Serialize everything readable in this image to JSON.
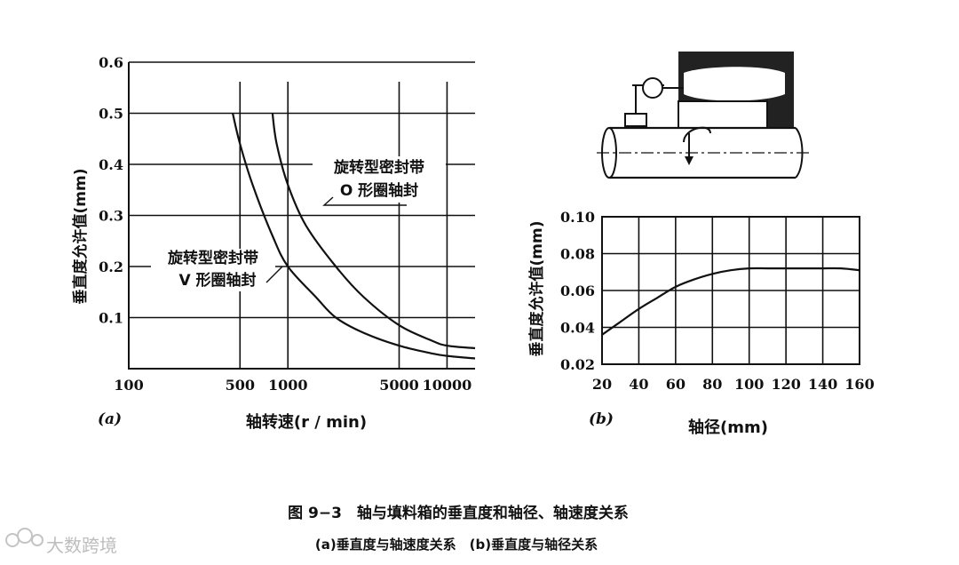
{
  "figure": {
    "caption": "图 9−3　轴与填料箱的垂直度和轴径、轴速度关系",
    "subcaption": "(a)垂直度与轴速度关系　(b)垂直度与轴径关系"
  },
  "watermark": "大数跨境",
  "chart_data": [
    {
      "panel": "(a)",
      "type": "line",
      "ylabel": "垂直度允许值(mm)",
      "xlabel": "轴转速(r / min)",
      "x_scale": "log",
      "x_ticks": [
        100,
        500,
        1000,
        5000,
        10000
      ],
      "x_tick_labels": [
        "100",
        "500",
        "1000",
        "5000",
        "10000"
      ],
      "y_ticks": [
        0.1,
        0.2,
        0.3,
        0.4,
        0.5,
        0.6
      ],
      "y_tick_labels": [
        "0.1",
        "0.2",
        "0.3",
        "0.4",
        "0.5",
        "0.6"
      ],
      "xlim": [
        100,
        15000
      ],
      "ylim": [
        0,
        0.6
      ],
      "grid": true,
      "series": [
        {
          "name": "旋转型密封带 V 形圈轴封",
          "label_lines": [
            "旋转型密封带",
            "V 形圈轴封"
          ],
          "x": [
            450,
            500,
            600,
            800,
            1000,
            1500,
            2000,
            3000,
            5000,
            8000,
            10000,
            15000
          ],
          "y": [
            0.5,
            0.44,
            0.36,
            0.26,
            0.2,
            0.14,
            0.1,
            0.07,
            0.045,
            0.03,
            0.025,
            0.02
          ]
        },
        {
          "name": "旋转型密封带 O 形圈轴封",
          "label_lines": [
            "旋转型密封带",
            "O 形圈轴封"
          ],
          "x": [
            800,
            850,
            1000,
            1300,
            2000,
            3000,
            5000,
            8000,
            10000,
            15000
          ],
          "y": [
            0.5,
            0.44,
            0.36,
            0.28,
            0.2,
            0.14,
            0.085,
            0.055,
            0.045,
            0.04
          ]
        }
      ]
    },
    {
      "panel": "(b)",
      "type": "line",
      "ylabel": "垂直度允许值(mm)",
      "xlabel": "轴径(mm)",
      "x_ticks": [
        20,
        40,
        60,
        80,
        100,
        120,
        140,
        160
      ],
      "x_tick_labels": [
        "20",
        "40",
        "60",
        "80",
        "100",
        "120",
        "140",
        "160"
      ],
      "y_ticks": [
        0.02,
        0.04,
        0.06,
        0.08,
        0.1
      ],
      "y_tick_labels": [
        "0.02",
        "0.04",
        "0.06",
        "0.08",
        "0.10"
      ],
      "xlim": [
        20,
        160
      ],
      "ylim": [
        0.02,
        0.1
      ],
      "grid": true,
      "series": [
        {
          "x": [
            20,
            30,
            40,
            50,
            60,
            70,
            80,
            90,
            100,
            110,
            120,
            130,
            140,
            150,
            160
          ],
          "y": [
            0.036,
            0.043,
            0.05,
            0.056,
            0.062,
            0.066,
            0.069,
            0.071,
            0.072,
            0.072,
            0.072,
            0.072,
            0.072,
            0.072,
            0.071
          ]
        }
      ]
    }
  ]
}
